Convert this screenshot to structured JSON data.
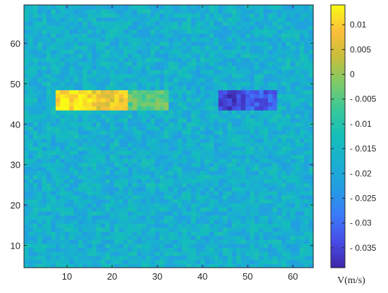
{
  "chart_data": {
    "type": "heatmap",
    "title": "",
    "xlabel": "",
    "ylabel": "",
    "xlim": [
      1,
      64
    ],
    "ylim": [
      5,
      69
    ],
    "x_ticks": [
      "10",
      "20",
      "30",
      "40",
      "50",
      "60"
    ],
    "x_tick_values": [
      10,
      20,
      30,
      40,
      50,
      60
    ],
    "y_ticks": [
      "10",
      "20",
      "30",
      "40",
      "50",
      "60"
    ],
    "y_tick_values": [
      10,
      20,
      30,
      40,
      50,
      60
    ],
    "grid": false,
    "colormap": "parula",
    "colorbar": {
      "label": "V(m/s)",
      "range": [
        -0.039,
        0.014
      ],
      "tick_values": [
        0.01,
        0.005,
        0,
        -0.005,
        -0.01,
        -0.015,
        -0.02,
        -0.025,
        -0.03,
        -0.035
      ],
      "tick_labels": [
        "0.01",
        "0.005",
        "0",
        "- 0.005",
        "- 0.01",
        "- 0.015",
        "- 0.02",
        "- 0.025",
        "- 0.03",
        "- 0.035"
      ]
    },
    "background_value": -0.017,
    "regions": [
      {
        "x_range": [
          8,
          16
        ],
        "y_range": [
          44,
          48
        ],
        "value": 0.012
      },
      {
        "x_range": [
          16,
          24
        ],
        "y_range": [
          44,
          48
        ],
        "value": 0.008
      },
      {
        "x_range": [
          24,
          33
        ],
        "y_range": [
          44,
          48
        ],
        "value": -0.004
      },
      {
        "x_range": [
          44,
          50
        ],
        "y_range": [
          44,
          48
        ],
        "value": -0.036
      },
      {
        "x_range": [
          50,
          57
        ],
        "y_range": [
          44,
          48
        ],
        "value": -0.032
      }
    ]
  }
}
